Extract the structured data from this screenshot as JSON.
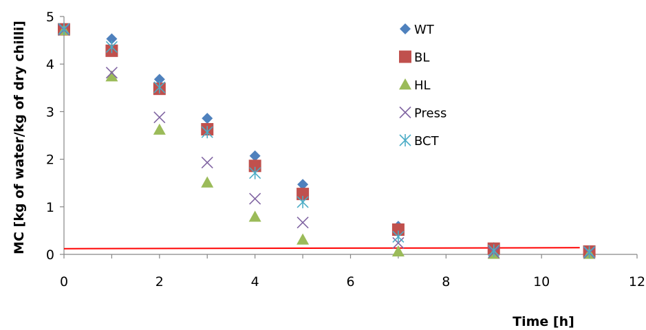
{
  "chart_data": {
    "type": "scatter",
    "title": "",
    "xlabel": "Time [h]",
    "ylabel": "MC [kg of water/kg of dry chilli]",
    "xlim": [
      0,
      12
    ],
    "ylim": [
      0,
      5
    ],
    "xticks": [
      0,
      2,
      4,
      6,
      8,
      10,
      12
    ],
    "xtick_labels": [
      "0",
      "2",
      "4",
      "6",
      "8",
      "10",
      "12"
    ],
    "yticks": [
      0,
      1,
      2,
      3,
      4,
      5
    ],
    "ytick_labels": [
      "0",
      "1",
      "2",
      "3",
      "4",
      "5"
    ],
    "grid": false,
    "legend_position": "top-right",
    "x": [
      0,
      1,
      2,
      3,
      4,
      5,
      7,
      9,
      11
    ],
    "series": [
      {
        "name": "WT",
        "marker": "diamond",
        "color": "#4F81BD",
        "values": [
          4.75,
          4.53,
          3.68,
          2.86,
          2.07,
          1.47,
          0.59,
          0.14,
          0.07
        ]
      },
      {
        "name": "BL",
        "marker": "square",
        "color": "#C0504D",
        "values": [
          4.73,
          4.28,
          3.48,
          2.63,
          1.86,
          1.27,
          0.52,
          0.12,
          0.06
        ]
      },
      {
        "name": "HL",
        "marker": "triangle",
        "color": "#9BBB59",
        "values": [
          4.71,
          3.74,
          2.62,
          1.51,
          0.79,
          0.31,
          0.06,
          0.01,
          0.01
        ]
      },
      {
        "name": "Press",
        "marker": "x",
        "color": "#8064A2",
        "values": [
          4.72,
          3.82,
          2.88,
          1.93,
          1.17,
          0.67,
          0.24,
          0.04,
          0.03
        ]
      },
      {
        "name": "BCT",
        "marker": "asterisk",
        "color": "#4BACC6",
        "values": [
          4.74,
          4.36,
          3.51,
          2.57,
          1.71,
          1.1,
          0.37,
          0.08,
          0.05
        ]
      }
    ],
    "reference_line": {
      "color": "#FF0000",
      "x": [
        0,
        10.8
      ],
      "y": [
        0.12,
        0.14
      ]
    }
  }
}
